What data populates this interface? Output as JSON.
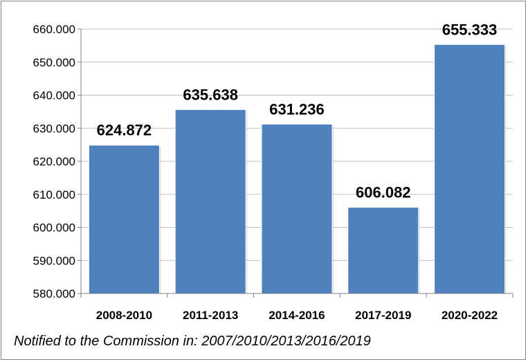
{
  "chart_data": {
    "type": "bar",
    "categories": [
      "2008-2010",
      "2011-2013",
      "2014-2016",
      "2017-2019",
      "2020-2022"
    ],
    "values": [
      624.872,
      635.638,
      631.236,
      606.082,
      655.333
    ],
    "data_labels": [
      "624.872",
      "635.638",
      "631.236",
      "606.082",
      "655.333"
    ],
    "ylim": [
      580,
      660
    ],
    "yticks": [
      580,
      590,
      600,
      610,
      620,
      630,
      640,
      650,
      660
    ],
    "ytick_labels": [
      "580.000",
      "590.000",
      "600.000",
      "610.000",
      "620.000",
      "630.000",
      "640.000",
      "650.000",
      "660.000"
    ],
    "grid": true,
    "bar_color": "#4F81BD",
    "title": "",
    "xlabel": "",
    "ylabel": ""
  },
  "footnote": "Notified to the Commission in: 2007/2010/2013/2016/2019"
}
